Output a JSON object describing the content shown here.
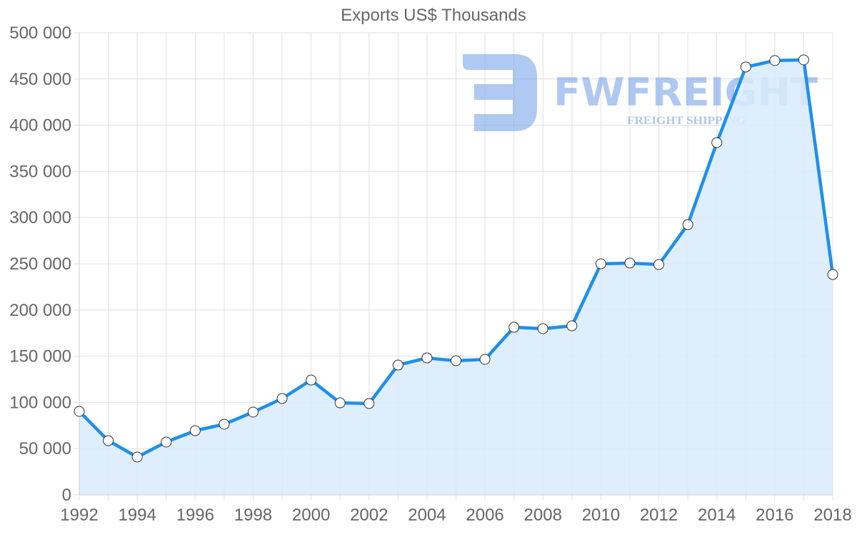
{
  "chart_data": {
    "type": "area",
    "title": "Exports US$ Thousands",
    "xlabel": "",
    "ylabel": "",
    "x": [
      1992,
      1993,
      1994,
      1995,
      1996,
      1997,
      1998,
      1999,
      2000,
      2001,
      2002,
      2003,
      2004,
      2005,
      2006,
      2007,
      2008,
      2009,
      2010,
      2011,
      2012,
      2013,
      2014,
      2015,
      2016,
      2017,
      2018
    ],
    "series": [
      {
        "name": "Exports US$ Thousands",
        "values": [
          90300,
          58600,
          40900,
          57100,
          69400,
          76400,
          89500,
          104200,
          124200,
          99500,
          98800,
          140400,
          148100,
          145100,
          146600,
          181300,
          179800,
          182900,
          250000,
          250800,
          249200,
          292400,
          381200,
          463000,
          470000,
          470700,
          238400
        ]
      }
    ],
    "ylim": [
      0,
      500000
    ],
    "y_ticks": [
      "0",
      "50 000",
      "100 000",
      "150 000",
      "200 000",
      "250 000",
      "300 000",
      "350 000",
      "400 000",
      "450 000",
      "500 000"
    ],
    "x_ticks": [
      "1992",
      "1994",
      "1996",
      "1998",
      "2000",
      "2002",
      "2004",
      "2006",
      "2008",
      "2010",
      "2012",
      "2014",
      "2016",
      "2018"
    ],
    "grid": true,
    "legend": "none",
    "colors": {
      "line": "#1e8fec",
      "fill": "#d8ebfc",
      "point_fill": "#ffffff",
      "point_stroke": "#333333",
      "grid": "#e0e0e0",
      "text": "#666666"
    }
  },
  "watermark": {
    "brand": "FWFREIGHT",
    "tagline": "FREIGHT SHIPPING",
    "color": "#6e9ce8"
  }
}
